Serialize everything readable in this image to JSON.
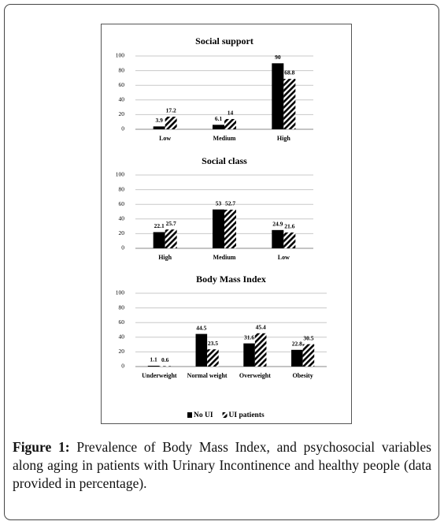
{
  "chart_data": [
    {
      "type": "bar",
      "title": "Social support",
      "categories": [
        "Low",
        "Medium",
        "High"
      ],
      "series": [
        {
          "name": "No UI",
          "color": "#000000",
          "hatch": false,
          "values": [
            3.9,
            6.1,
            90
          ]
        },
        {
          "name": "UI patients",
          "color": "#000000",
          "hatch": true,
          "values": [
            17.2,
            14,
            68.8
          ]
        }
      ],
      "ylim": [
        0,
        100
      ],
      "yticks": [
        0,
        20,
        40,
        60,
        80,
        100
      ],
      "grid": true
    },
    {
      "type": "bar",
      "title": "Social class",
      "categories": [
        "High",
        "Medium",
        "Low"
      ],
      "series": [
        {
          "name": "No UI",
          "color": "#000000",
          "hatch": false,
          "values": [
            22.1,
            53,
            24.9
          ]
        },
        {
          "name": "UI patients",
          "color": "#000000",
          "hatch": true,
          "values": [
            25.7,
            52.7,
            21.6
          ]
        }
      ],
      "ylim": [
        0,
        100
      ],
      "yticks": [
        0,
        20,
        40,
        60,
        80,
        100
      ],
      "grid": true
    },
    {
      "type": "bar",
      "title": "Body Mass Index",
      "categories": [
        "Underweight",
        "Normal weight",
        "Overweight",
        "Obesity"
      ],
      "series": [
        {
          "name": "No UI",
          "color": "#000000",
          "hatch": false,
          "values": [
            1.1,
            44.5,
            31.6,
            22.8
          ]
        },
        {
          "name": "UI patients",
          "color": "#000000",
          "hatch": true,
          "values": [
            0.6,
            23.5,
            45.4,
            30.5
          ]
        }
      ],
      "ylim": [
        0,
        100
      ],
      "yticks": [
        0,
        20,
        40,
        60,
        80,
        100
      ],
      "grid": true
    }
  ],
  "caption": {
    "label": "Figure 1:",
    "text": "Prevalence of Body Mass Index, and psychosocial variables along aging in patients with Urinary Incontinence and healthy people (data provided in percentage)."
  }
}
